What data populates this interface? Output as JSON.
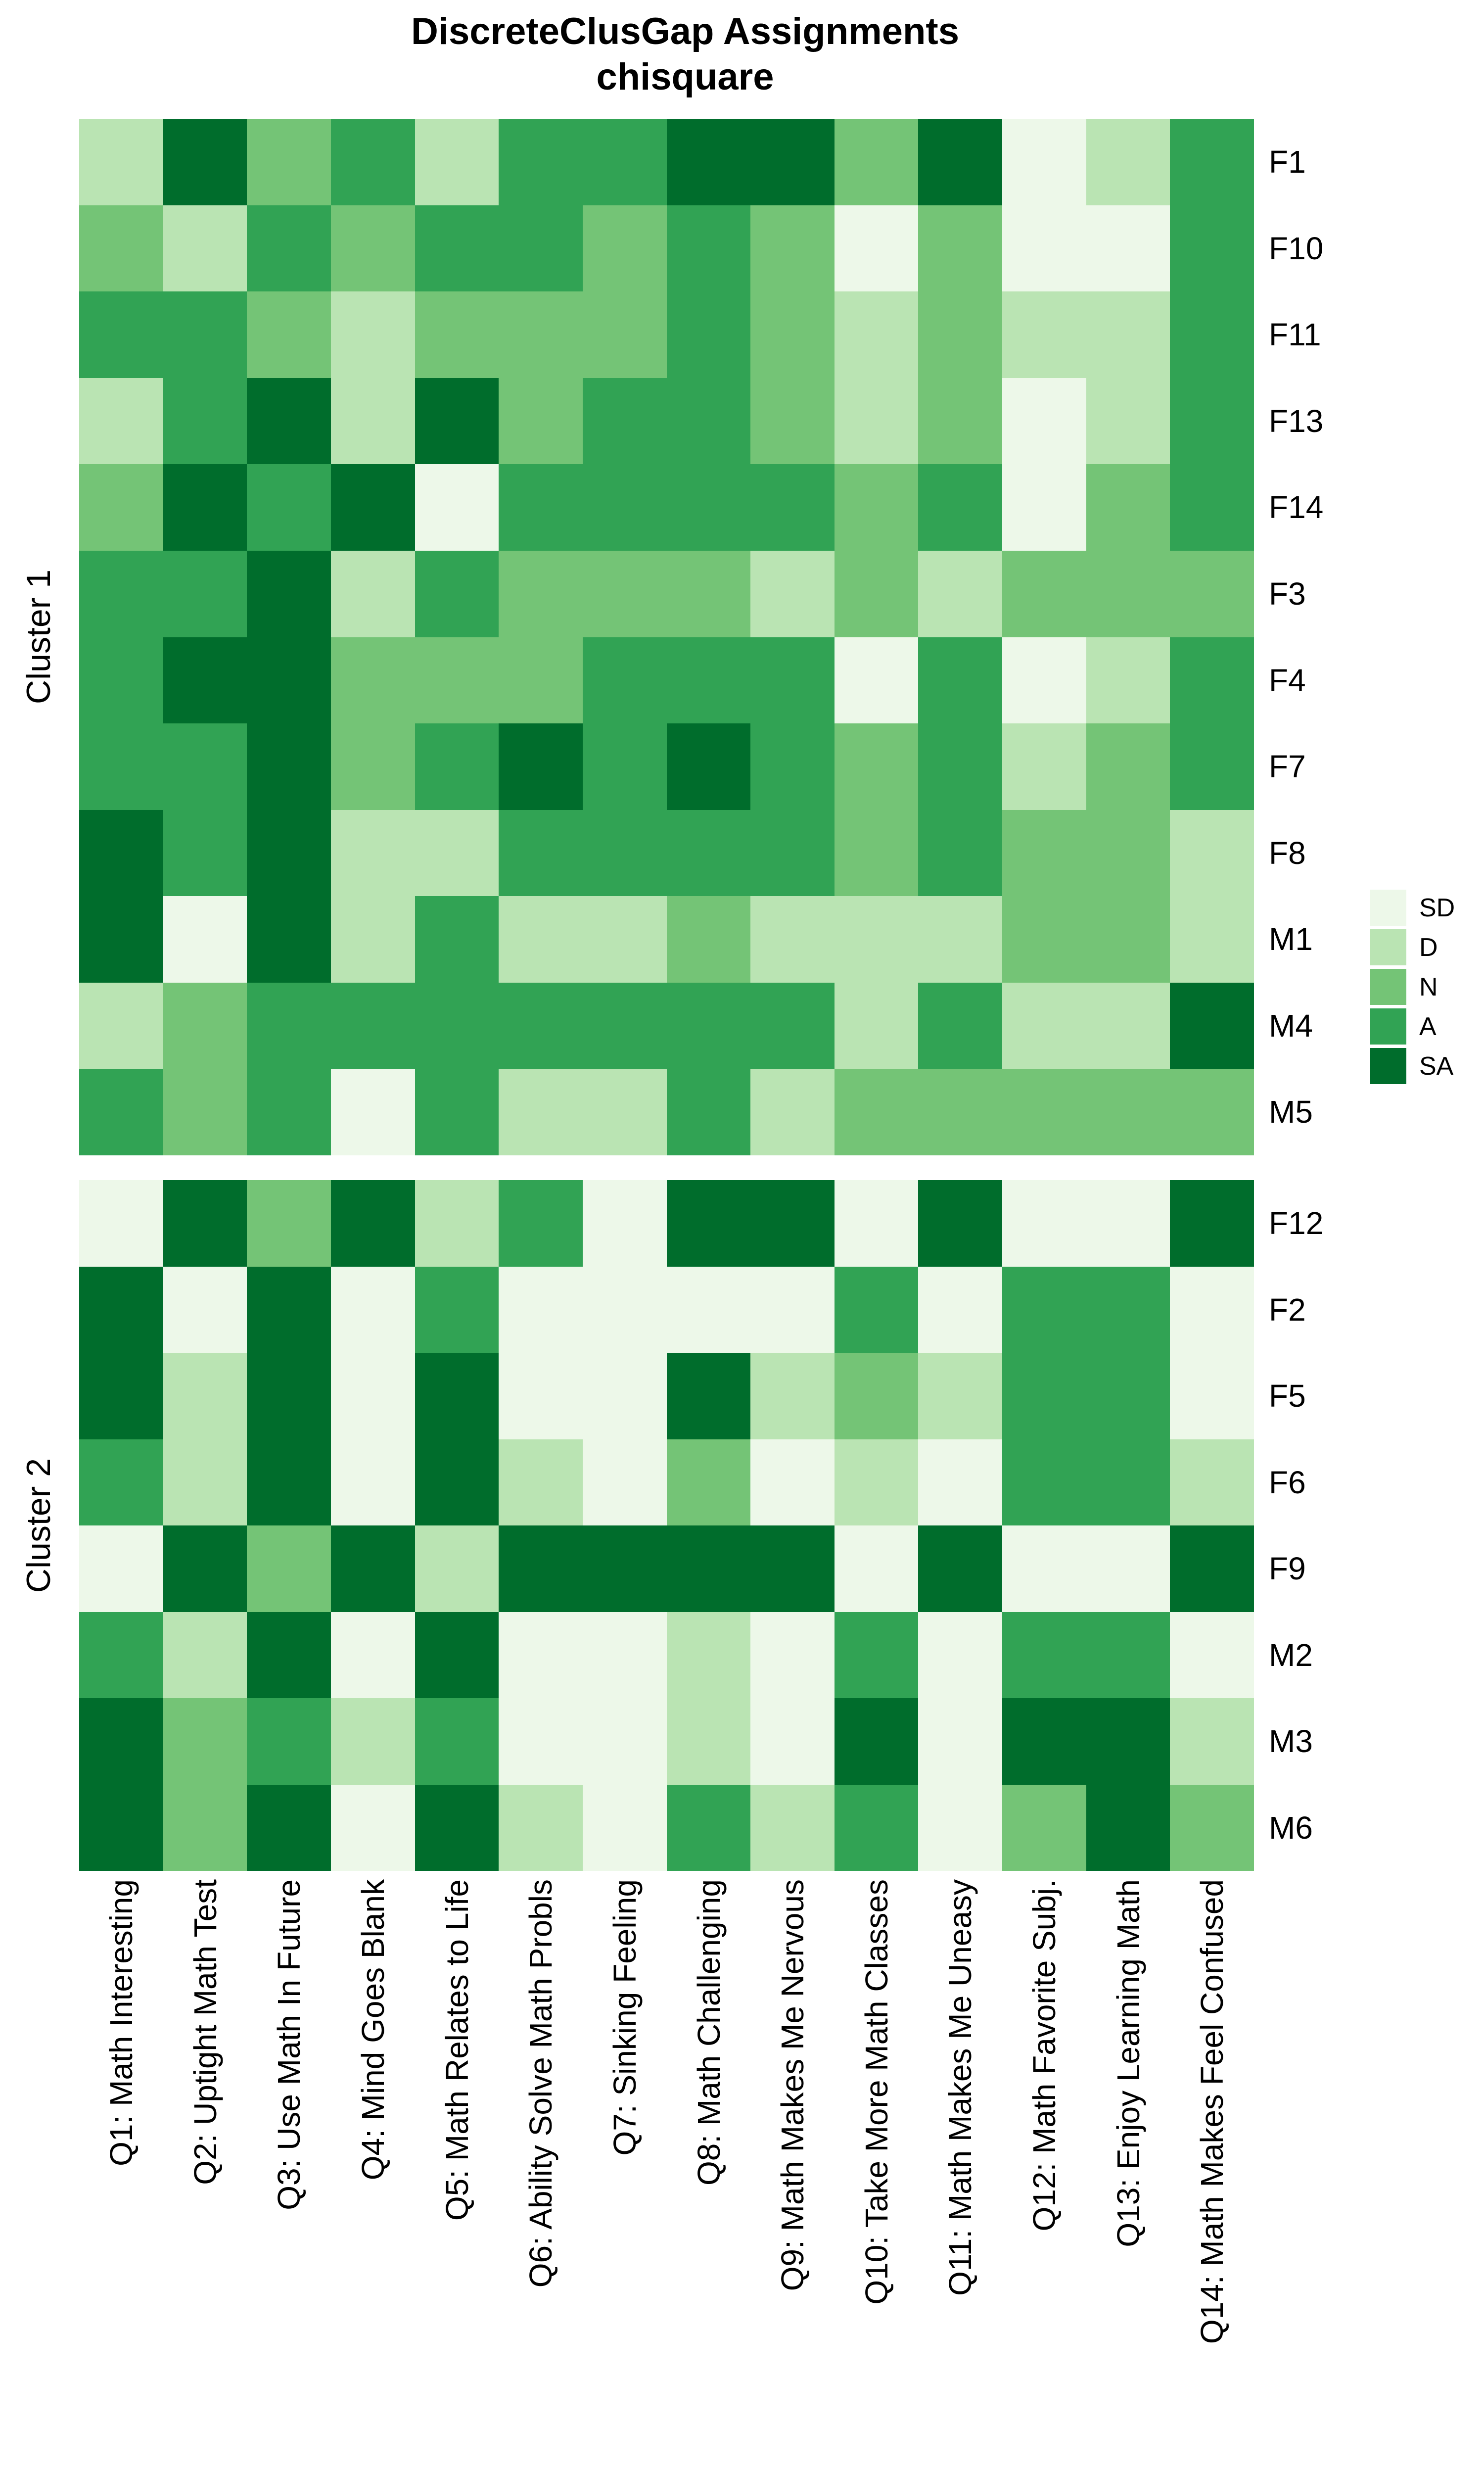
{
  "title": "DiscreteClusGap Assignments",
  "subtitle": "chisquare",
  "legend": {
    "entries": [
      {
        "label": "SD",
        "color": "#EDF8E9"
      },
      {
        "label": "D",
        "color": "#BAE4B3"
      },
      {
        "label": "N",
        "color": "#74C476"
      },
      {
        "label": "A",
        "color": "#31A354"
      },
      {
        "label": "SA",
        "color": "#006D2C"
      }
    ]
  },
  "chart_data": {
    "type": "heatmap",
    "title": "DiscreteClusGap Assignments",
    "subtitle": "chisquare",
    "legend_position": "right",
    "grid": "off",
    "scale_levels": [
      "SD",
      "D",
      "N",
      "A",
      "SA"
    ],
    "colors": {
      "SD": "#EDF8E9",
      "D": "#BAE4B3",
      "N": "#74C476",
      "A": "#31A354",
      "SA": "#006D2C"
    },
    "x_labels": [
      "Q1: Math Interesting",
      "Q2: Uptight Math Test",
      "Q3: Use Math In Future",
      "Q4: Mind Goes Blank",
      "Q5: Math Relates to Life",
      "Q6: Ability Solve Math Probls",
      "Q7: Sinking Feeling",
      "Q8: Math Challenging",
      "Q9: Math Makes Me Nervous",
      "Q10: Take More Math Classes",
      "Q11: Math Makes Me Uneasy",
      "Q12: Math Favorite Subj.",
      "Q13: Enjoy Learning Math",
      "Q14: Math Makes Feel Confused"
    ],
    "row_clusters": [
      {
        "cluster": "Cluster 1",
        "rows": [
          "F1",
          "F10",
          "F11",
          "F13",
          "F14",
          "F3",
          "F4",
          "F7",
          "F8",
          "M1",
          "M4",
          "M5"
        ],
        "values": [
          [
            "D",
            "SA",
            "N",
            "A",
            "D",
            "A",
            "A",
            "SA",
            "SA",
            "N",
            "SA",
            "SD",
            "D",
            "A"
          ],
          [
            "N",
            "D",
            "A",
            "N",
            "A",
            "A",
            "N",
            "A",
            "N",
            "SD",
            "N",
            "SD",
            "SD",
            "A"
          ],
          [
            "A",
            "A",
            "N",
            "D",
            "N",
            "N",
            "N",
            "A",
            "N",
            "D",
            "N",
            "D",
            "D",
            "A"
          ],
          [
            "D",
            "A",
            "SA",
            "D",
            "SA",
            "N",
            "A",
            "A",
            "N",
            "D",
            "N",
            "SD",
            "D",
            "A"
          ],
          [
            "N",
            "SA",
            "A",
            "SA",
            "SD",
            "A",
            "A",
            "A",
            "A",
            "N",
            "A",
            "SD",
            "N",
            "A"
          ],
          [
            "A",
            "A",
            "SA",
            "D",
            "A",
            "N",
            "N",
            "N",
            "D",
            "N",
            "D",
            "N",
            "N",
            "N"
          ],
          [
            "A",
            "SA",
            "SA",
            "N",
            "N",
            "N",
            "A",
            "A",
            "A",
            "SD",
            "A",
            "SD",
            "D",
            "A"
          ],
          [
            "A",
            "A",
            "SA",
            "N",
            "A",
            "SA",
            "A",
            "SA",
            "A",
            "N",
            "A",
            "D",
            "N",
            "A"
          ],
          [
            "SA",
            "A",
            "SA",
            "D",
            "D",
            "A",
            "A",
            "A",
            "A",
            "N",
            "A",
            "N",
            "N",
            "D"
          ],
          [
            "SA",
            "SD",
            "SA",
            "D",
            "A",
            "D",
            "D",
            "N",
            "D",
            "D",
            "D",
            "N",
            "N",
            "D"
          ],
          [
            "D",
            "N",
            "A",
            "A",
            "A",
            "A",
            "A",
            "A",
            "A",
            "D",
            "A",
            "D",
            "D",
            "SA"
          ],
          [
            "A",
            "N",
            "A",
            "SD",
            "A",
            "D",
            "D",
            "A",
            "D",
            "N",
            "N",
            "N",
            "N",
            "N"
          ]
        ]
      },
      {
        "cluster": "Cluster 2",
        "rows": [
          "F12",
          "F2",
          "F5",
          "F6",
          "F9",
          "M2",
          "M3",
          "M6"
        ],
        "values": [
          [
            "SD",
            "SA",
            "N",
            "SA",
            "D",
            "A",
            "SD",
            "SA",
            "SA",
            "SD",
            "SA",
            "SD",
            "SD",
            "SA"
          ],
          [
            "SA",
            "SD",
            "SA",
            "SD",
            "A",
            "SD",
            "SD",
            "SD",
            "SD",
            "A",
            "SD",
            "A",
            "A",
            "SD"
          ],
          [
            "SA",
            "D",
            "SA",
            "SD",
            "SA",
            "SD",
            "SD",
            "SA",
            "D",
            "N",
            "D",
            "A",
            "A",
            "SD"
          ],
          [
            "A",
            "D",
            "SA",
            "SD",
            "SA",
            "D",
            "SD",
            "N",
            "SD",
            "D",
            "SD",
            "A",
            "A",
            "D"
          ],
          [
            "SD",
            "SA",
            "N",
            "SA",
            "D",
            "SA",
            "SA",
            "SA",
            "SA",
            "SD",
            "SA",
            "SD",
            "SD",
            "SA"
          ],
          [
            "A",
            "D",
            "SA",
            "SD",
            "SA",
            "SD",
            "SD",
            "D",
            "SD",
            "A",
            "SD",
            "A",
            "A",
            "SD"
          ],
          [
            "SA",
            "N",
            "A",
            "D",
            "A",
            "SD",
            "SD",
            "D",
            "SD",
            "SA",
            "SD",
            "SA",
            "SA",
            "D"
          ],
          [
            "SA",
            "N",
            "SA",
            "SD",
            "SA",
            "D",
            "SD",
            "A",
            "D",
            "A",
            "SD",
            "N",
            "SA",
            "N"
          ]
        ]
      }
    ]
  }
}
